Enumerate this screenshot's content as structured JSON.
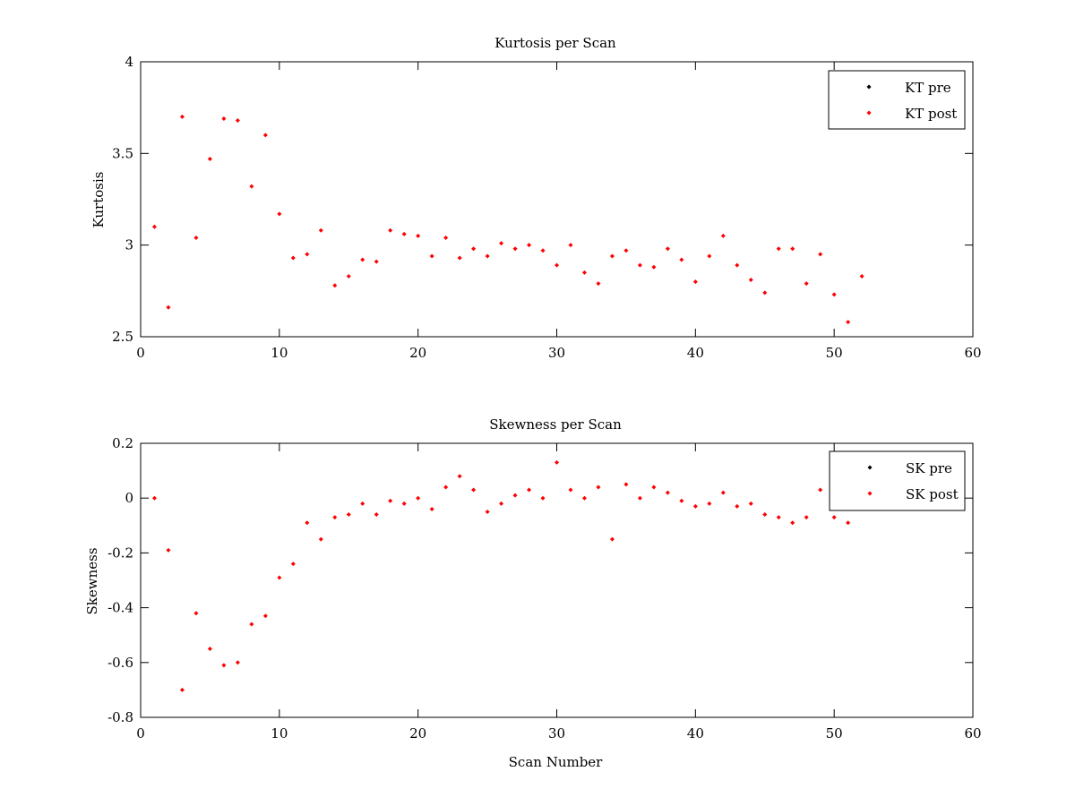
{
  "chart_data": [
    {
      "type": "scatter",
      "title": "Kurtosis per Scan",
      "xlabel": "",
      "ylabel": "Kurtosis",
      "xlim": [
        0,
        60
      ],
      "ylim": [
        2.5,
        4
      ],
      "xticks": [
        0,
        10,
        20,
        30,
        40,
        50,
        60
      ],
      "xtick_labels": [
        "0",
        "10",
        "20",
        "30",
        "40",
        "50",
        "60"
      ],
      "yticks": [
        2.5,
        3,
        3.5,
        4
      ],
      "ytick_labels": [
        "2.5",
        "3",
        "3.5",
        "4"
      ],
      "grid": false,
      "legend_position": "top-right",
      "series": [
        {
          "name": "KT pre",
          "color": "#000000",
          "x": [],
          "y": []
        },
        {
          "name": "KT post",
          "color": "#ff0000",
          "x": [
            1,
            2,
            3,
            4,
            5,
            6,
            7,
            8,
            9,
            10,
            11,
            12,
            13,
            14,
            15,
            16,
            17,
            18,
            19,
            20,
            21,
            22,
            23,
            24,
            25,
            26,
            27,
            28,
            29,
            30,
            31,
            32,
            33,
            34,
            35,
            36,
            37,
            38,
            39,
            40,
            41,
            42,
            43,
            44,
            45,
            46,
            47,
            48,
            49,
            50,
            51,
            52
          ],
          "y": [
            3.1,
            2.66,
            3.7,
            3.04,
            3.47,
            3.69,
            3.68,
            3.32,
            3.6,
            3.17,
            2.93,
            2.95,
            3.08,
            2.78,
            2.83,
            2.92,
            2.91,
            3.08,
            3.06,
            3.05,
            2.94,
            3.04,
            2.93,
            2.98,
            2.94,
            3.01,
            2.98,
            3.0,
            2.97,
            2.89,
            3.0,
            2.85,
            2.79,
            2.94,
            2.97,
            2.89,
            2.88,
            2.98,
            2.92,
            2.8,
            2.94,
            3.05,
            2.89,
            2.81,
            2.74,
            2.98,
            2.98,
            2.79,
            2.95,
            2.73,
            2.58,
            2.83
          ]
        }
      ]
    },
    {
      "type": "scatter",
      "title": "Skewness per Scan",
      "xlabel": "Scan Number",
      "ylabel": "Skewness",
      "xlim": [
        0,
        60
      ],
      "ylim": [
        -0.8,
        0.2
      ],
      "xticks": [
        0,
        10,
        20,
        30,
        40,
        50,
        60
      ],
      "xtick_labels": [
        "0",
        "10",
        "20",
        "30",
        "40",
        "50",
        "60"
      ],
      "yticks": [
        -0.8,
        -0.6,
        -0.4,
        -0.2,
        0,
        0.2
      ],
      "ytick_labels": [
        "-0.8",
        "-0.6",
        "-0.4",
        "-0.2",
        "0",
        "0.2"
      ],
      "grid": false,
      "legend_position": "top-right",
      "series": [
        {
          "name": "SK pre",
          "color": "#000000",
          "x": [],
          "y": []
        },
        {
          "name": "SK post",
          "color": "#ff0000",
          "x": [
            1,
            2,
            3,
            4,
            5,
            6,
            7,
            8,
            9,
            10,
            11,
            12,
            13,
            14,
            15,
            16,
            17,
            18,
            19,
            20,
            21,
            22,
            23,
            24,
            25,
            26,
            27,
            28,
            29,
            30,
            31,
            32,
            33,
            34,
            35,
            36,
            37,
            38,
            39,
            40,
            41,
            42,
            43,
            44,
            45,
            46,
            47,
            48,
            49,
            50,
            51
          ],
          "y": [
            0.0,
            -0.19,
            -0.7,
            -0.42,
            -0.55,
            -0.61,
            -0.6,
            -0.46,
            -0.43,
            -0.29,
            -0.24,
            -0.09,
            -0.15,
            -0.07,
            -0.06,
            -0.02,
            -0.06,
            -0.01,
            -0.02,
            0.0,
            -0.04,
            0.04,
            0.08,
            0.03,
            -0.05,
            -0.02,
            0.01,
            0.03,
            0.0,
            0.13,
            0.03,
            0.0,
            0.04,
            -0.15,
            0.05,
            0.0,
            0.04,
            0.02,
            -0.01,
            -0.03,
            -0.02,
            0.02,
            -0.03,
            -0.02,
            -0.06,
            -0.07,
            -0.09,
            -0.07,
            0.03,
            -0.07,
            -0.09
          ]
        }
      ]
    }
  ]
}
